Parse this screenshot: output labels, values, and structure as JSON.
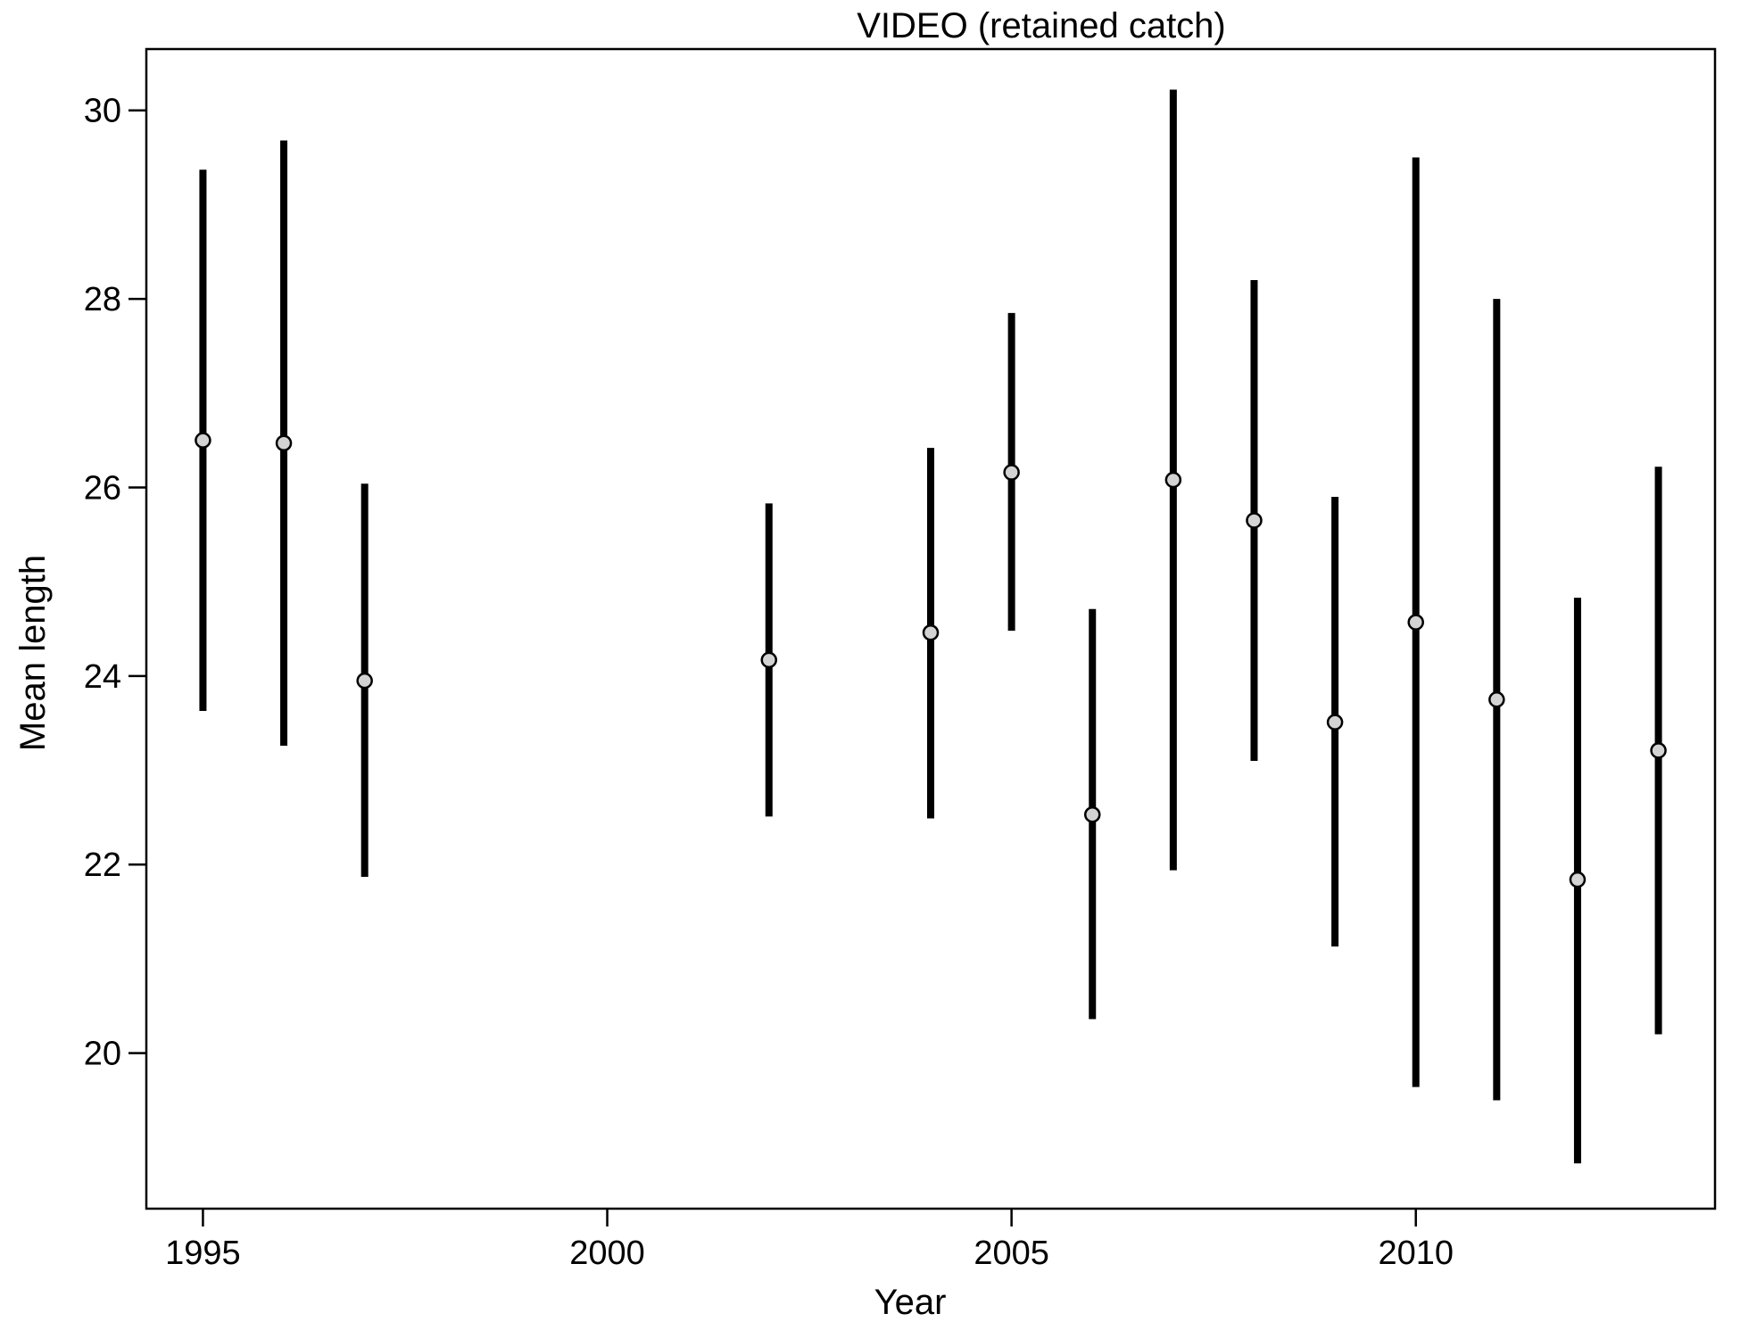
{
  "chart_data": {
    "type": "scatter",
    "title": "VIDEO (retained catch)",
    "xlabel": "Year",
    "ylabel": "Mean length",
    "xlim": [
      1994.3,
      2013.7
    ],
    "ylim": [
      18.35,
      30.65
    ],
    "xticks": [
      1995,
      2000,
      2005,
      2010
    ],
    "yticks": [
      20,
      22,
      24,
      26,
      28,
      30
    ],
    "grid": false,
    "legend": "none",
    "marker_fill": "#d3d3d3",
    "line_color": "#000000",
    "series": [
      {
        "points": [
          {
            "x": 1995,
            "y": 26.5,
            "lower": 23.63,
            "upper": 29.37
          },
          {
            "x": 1996,
            "y": 26.47,
            "lower": 23.26,
            "upper": 29.68
          },
          {
            "x": 1997,
            "y": 23.95,
            "lower": 21.87,
            "upper": 26.04
          },
          {
            "x": 2002,
            "y": 24.17,
            "lower": 22.51,
            "upper": 25.83
          },
          {
            "x": 2004,
            "y": 24.46,
            "lower": 22.49,
            "upper": 26.42
          },
          {
            "x": 2005,
            "y": 26.16,
            "lower": 24.48,
            "upper": 27.85
          },
          {
            "x": 2006,
            "y": 22.53,
            "lower": 20.36,
            "upper": 24.71
          },
          {
            "x": 2007,
            "y": 26.08,
            "lower": 21.94,
            "upper": 30.22
          },
          {
            "x": 2008,
            "y": 25.65,
            "lower": 23.1,
            "upper": 28.2
          },
          {
            "x": 2009,
            "y": 23.51,
            "lower": 21.13,
            "upper": 25.9
          },
          {
            "x": 2010,
            "y": 24.57,
            "lower": 19.64,
            "upper": 29.5
          },
          {
            "x": 2011,
            "y": 23.75,
            "lower": 19.5,
            "upper": 28.0
          },
          {
            "x": 2012,
            "y": 21.84,
            "lower": 18.83,
            "upper": 24.83
          },
          {
            "x": 2013,
            "y": 23.21,
            "lower": 20.2,
            "upper": 26.22
          }
        ]
      }
    ]
  }
}
